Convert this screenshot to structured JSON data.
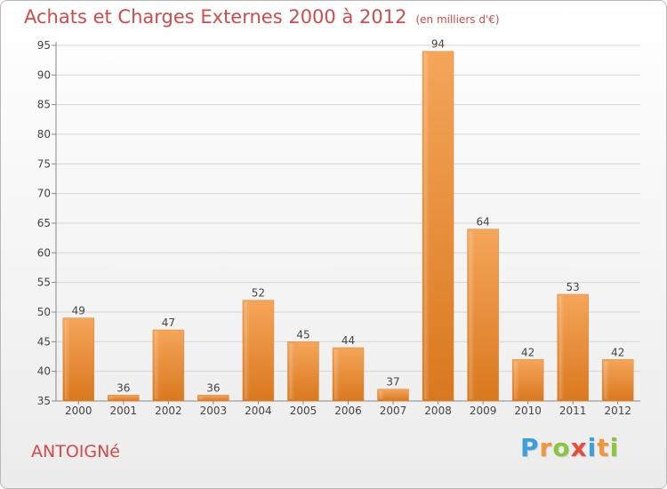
{
  "chart_data": {
    "type": "bar",
    "title": "Achats et Charges Externes 2000 à 2012",
    "subtitle": "(en milliers d'€)",
    "categories": [
      "2000",
      "2001",
      "2002",
      "2003",
      "2004",
      "2005",
      "2006",
      "2007",
      "2008",
      "2009",
      "2010",
      "2011",
      "2012"
    ],
    "values": [
      49,
      36,
      47,
      36,
      52,
      45,
      44,
      37,
      94,
      64,
      42,
      53,
      42
    ],
    "ylim": [
      35,
      95
    ],
    "yticks": [
      35,
      40,
      45,
      50,
      55,
      60,
      65,
      70,
      75,
      80,
      85,
      90,
      95
    ],
    "grid": true,
    "bar_color": "#f0963c"
  },
  "footer": {
    "commune": "ANTOIGNé",
    "brand_letters": [
      {
        "ch": "P",
        "color": "#3aa0dc"
      },
      {
        "ch": "r",
        "color": "#f0963c"
      },
      {
        "ch": "o",
        "color": "#8cc640"
      },
      {
        "ch": "x",
        "color": "#e84c3d"
      },
      {
        "ch": "i",
        "color": "#3aa0dc"
      },
      {
        "ch": "t",
        "color": "#f0963c"
      },
      {
        "ch": "i",
        "color": "#8cc640"
      }
    ]
  }
}
